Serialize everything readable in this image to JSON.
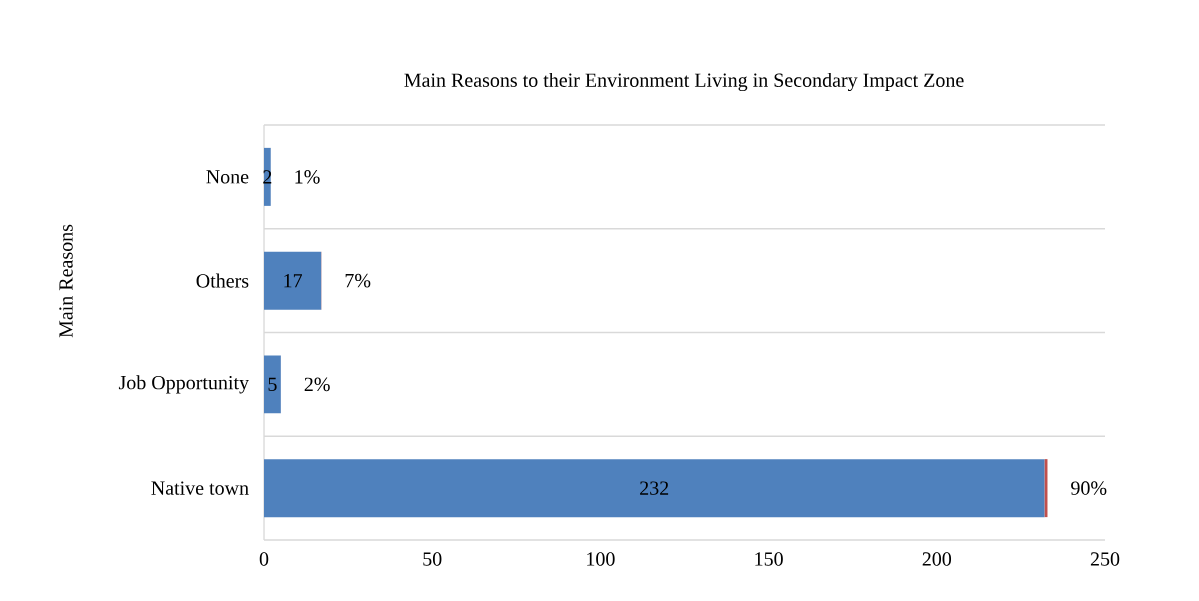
{
  "chart_data": {
    "type": "bar",
    "orientation": "horizontal",
    "stacked": true,
    "title": "Main Reasons to their Environment Living in Secondary Impact Zone",
    "ylabel": "Main Reasons",
    "categories": [
      "None",
      "Others",
      "Job Opportunity",
      "Native town"
    ],
    "series": [
      {
        "color": "#4f81bd",
        "values": [
          2,
          17,
          5,
          232
        ],
        "value_labels": [
          "2",
          "17",
          "5",
          "232"
        ]
      },
      {
        "color": "#c0504d",
        "values": [
          0.01,
          0.07,
          0.02,
          0.9
        ],
        "value_labels": [
          "1%",
          "7%",
          "2%",
          "90%"
        ]
      }
    ],
    "xlim": [
      0,
      250
    ],
    "xticks": [
      0,
      50,
      100,
      150,
      200,
      250
    ],
    "grid": "y"
  }
}
